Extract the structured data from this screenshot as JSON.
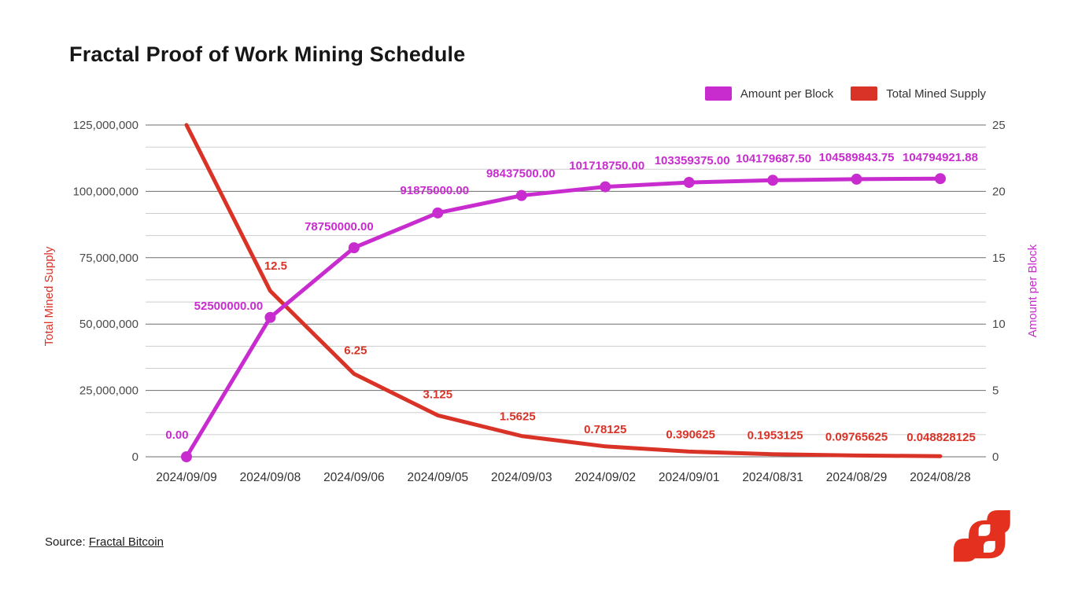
{
  "header": {
    "title": "Fractal Proof of Work Mining Schedule"
  },
  "legend": [
    {
      "label": "Amount per Block",
      "color": "#c82ccf"
    },
    {
      "label": "Total Mined Supply",
      "color": "#d93327"
    }
  ],
  "source": {
    "prefix": "Source:",
    "link_text": "Fractal Bitcoin"
  },
  "logo": {
    "name": "fractal-bitcoin-logo",
    "color": "#e4311f"
  },
  "chart_data": {
    "type": "line",
    "title": "Fractal Proof of Work Mining Schedule",
    "x_categories": [
      "2024/09/09",
      "2024/09/08",
      "2024/09/06",
      "2024/09/05",
      "2024/09/03",
      "2024/09/02",
      "2024/09/01",
      "2024/08/31",
      "2024/08/29",
      "2024/08/28"
    ],
    "left_axis": {
      "title": "Total Mined Supply",
      "color": "#d93327",
      "min": 0,
      "max": 125000000,
      "tick_labels": [
        "0",
        "25,000,000",
        "50,000,000",
        "75,000,000",
        "100,000,000",
        "125,000,000"
      ]
    },
    "right_axis": {
      "title": "Amount per Block",
      "color": "#c82ccf",
      "min": 0,
      "max": 25,
      "tick_labels": [
        "0",
        "5",
        "10",
        "15",
        "20",
        "25"
      ]
    },
    "grid": {
      "horizontal": true,
      "vertical": false,
      "minor_divisions_per_major": 3
    },
    "legend_position": "top-right",
    "series": [
      {
        "name": "Amount per Block",
        "color": "#c82ccf",
        "scale_axis": "left",
        "markers": true,
        "values": [
          0,
          52500000,
          78750000,
          91875000,
          98437500,
          101718750,
          103359375,
          104179687.5,
          104589843.75,
          104794921.875
        ],
        "point_labels": [
          "0.00",
          "52500000.00",
          "78750000.00",
          "91875000.00",
          "98437500.00",
          "101718750.00",
          "103359375.00",
          "104179687.50",
          "104589843.75",
          "104794921.88"
        ]
      },
      {
        "name": "Total Mined Supply",
        "color": "#d93327",
        "scale_axis": "right",
        "markers": false,
        "values": [
          25,
          12.5,
          6.25,
          3.125,
          1.5625,
          0.78125,
          0.390625,
          0.1953125,
          0.09765625,
          0.048828125
        ],
        "point_labels": [
          "",
          "12.5",
          "6.25",
          "3.125",
          "1.5625",
          "0.78125",
          "0.390625",
          "0.1953125",
          "0.09765625",
          "0.048828125"
        ]
      }
    ]
  }
}
